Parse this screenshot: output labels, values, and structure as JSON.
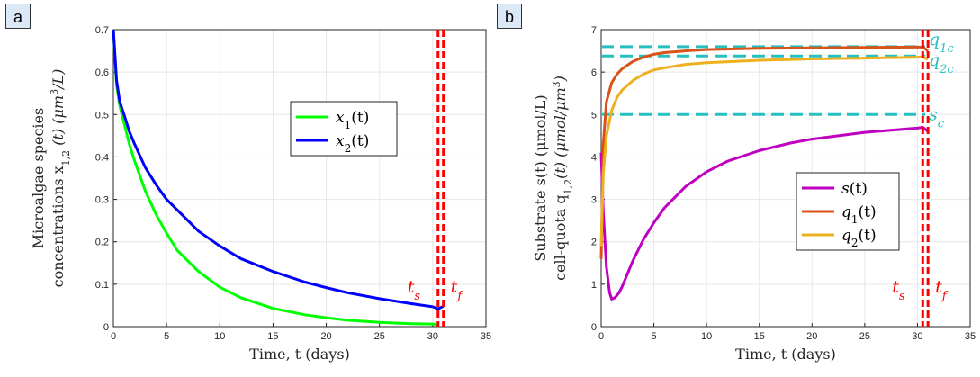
{
  "panels": [
    {
      "letter": "a"
    },
    {
      "letter": "b"
    }
  ],
  "colors": {
    "x1": "#00ff00",
    "x2": "#0000ff",
    "s": "#c000c0",
    "q1": "#d95319",
    "q2": "#edb120",
    "critical": "#27bfbf",
    "marker": "#ff0000",
    "grid": "#e6e6e6"
  },
  "chart_data": [
    {
      "type": "line",
      "panel": "a",
      "xlabel": "Time, t (days)",
      "ylabel_line1": "Microalgae species",
      "ylabel_line2": "concentrations x",
      "ylabel_sub": "1,2",
      "ylabel_tail": "(t) (μm",
      "ylabel_sup": "3",
      "ylabel_end": "/L)",
      "xlim": [
        0,
        35
      ],
      "ylim": [
        0,
        0.7
      ],
      "xticks": [
        "0",
        "5",
        "10",
        "15",
        "20",
        "25",
        "30",
        "35"
      ],
      "yticks": [
        "0",
        "0.1",
        "0.2",
        "0.3",
        "0.4",
        "0.5",
        "0.6",
        "0.7"
      ],
      "grid": true,
      "legend_position": "middle-right",
      "series": [
        {
          "name": "x",
          "sub": "1",
          "tail": "(t)",
          "color_key": "x1",
          "x": [
            0,
            0.3,
            0.6,
            1,
            1.5,
            2,
            3,
            4,
            5,
            6,
            8,
            10,
            12,
            15,
            18,
            20,
            22,
            25,
            28,
            30,
            30.5
          ],
          "y": [
            0.7,
            0.57,
            0.52,
            0.48,
            0.43,
            0.39,
            0.32,
            0.265,
            0.22,
            0.18,
            0.13,
            0.093,
            0.068,
            0.043,
            0.028,
            0.021,
            0.015,
            0.01,
            0.007,
            0.006,
            0.005
          ]
        },
        {
          "name": "x",
          "sub": "2",
          "tail": "(t)",
          "color_key": "x2",
          "x": [
            0,
            0.3,
            0.6,
            1,
            1.5,
            2,
            3,
            4,
            5,
            6,
            8,
            10,
            12,
            15,
            18,
            20,
            22,
            25,
            28,
            30,
            30.5,
            31
          ],
          "y": [
            0.7,
            0.58,
            0.53,
            0.5,
            0.46,
            0.43,
            0.375,
            0.335,
            0.3,
            0.275,
            0.225,
            0.19,
            0.16,
            0.13,
            0.105,
            0.092,
            0.08,
            0.066,
            0.054,
            0.047,
            0.042,
            0.048
          ]
        }
      ],
      "markers": [
        {
          "x": 30.5,
          "label": "t",
          "sub": "s"
        },
        {
          "x": 31.0,
          "label": "t",
          "sub": "f"
        }
      ]
    },
    {
      "type": "line",
      "panel": "b",
      "xlabel": "Time, t (days)",
      "ylabel_line1_a": "Substrate s(t) (μmol/L)",
      "ylabel_line2_a": "cell-quota q",
      "ylabel_sub": "1,2",
      "ylabel_tail": "(t) (μmol/μm",
      "ylabel_sup": "3",
      "ylabel_end": ")",
      "xlim": [
        0,
        35
      ],
      "ylim": [
        0,
        7
      ],
      "xticks": [
        "0",
        "5",
        "10",
        "15",
        "20",
        "25",
        "30",
        "35"
      ],
      "yticks": [
        "0",
        "1",
        "2",
        "3",
        "4",
        "5",
        "6",
        "7"
      ],
      "grid": true,
      "legend_position": "lower-right",
      "series": [
        {
          "name": "s",
          "sub": "",
          "tail": "(t)",
          "color_key": "s",
          "x": [
            0,
            0.2,
            0.5,
            0.8,
            1.0,
            1.3,
            1.7,
            2,
            2.5,
            3,
            4,
            5,
            6,
            8,
            10,
            12,
            15,
            18,
            20,
            25,
            30,
            30.5,
            31
          ],
          "y": [
            4.1,
            2.7,
            1.4,
            0.8,
            0.65,
            0.68,
            0.8,
            0.95,
            1.25,
            1.55,
            2.05,
            2.45,
            2.8,
            3.3,
            3.65,
            3.9,
            4.15,
            4.33,
            4.42,
            4.58,
            4.68,
            4.7,
            4.6
          ]
        },
        {
          "name": "q",
          "sub": "1",
          "tail": "(t)",
          "color_key": "q1",
          "x": [
            0,
            0.2,
            0.5,
            1,
            1.5,
            2,
            3,
            4,
            5,
            6,
            8,
            10,
            15,
            20,
            25,
            30,
            30.5,
            31
          ],
          "y": [
            1.6,
            4.3,
            5.3,
            5.75,
            5.95,
            6.08,
            6.25,
            6.35,
            6.42,
            6.46,
            6.5,
            6.53,
            6.56,
            6.57,
            6.58,
            6.59,
            6.59,
            6.5
          ]
        },
        {
          "name": "q",
          "sub": "2",
          "tail": "(t)",
          "color_key": "q2",
          "x": [
            0,
            0.2,
            0.5,
            1,
            1.5,
            2,
            3,
            4,
            5,
            6,
            8,
            10,
            15,
            20,
            25,
            30,
            30.5,
            31
          ],
          "y": [
            1.9,
            3.6,
            4.5,
            5.1,
            5.4,
            5.58,
            5.8,
            5.95,
            6.05,
            6.1,
            6.18,
            6.22,
            6.28,
            6.31,
            6.33,
            6.35,
            6.36,
            6.3
          ]
        }
      ],
      "critical_lines": [
        {
          "y": 6.6,
          "label": "q",
          "sub": "1c"
        },
        {
          "y": 6.38,
          "label": "q",
          "sub": "2c"
        },
        {
          "y": 5.0,
          "label": "s",
          "sub": "c"
        }
      ],
      "markers": [
        {
          "x": 30.5,
          "label": "t",
          "sub": "s"
        },
        {
          "x": 31.0,
          "label": "t",
          "sub": "f"
        }
      ]
    }
  ]
}
